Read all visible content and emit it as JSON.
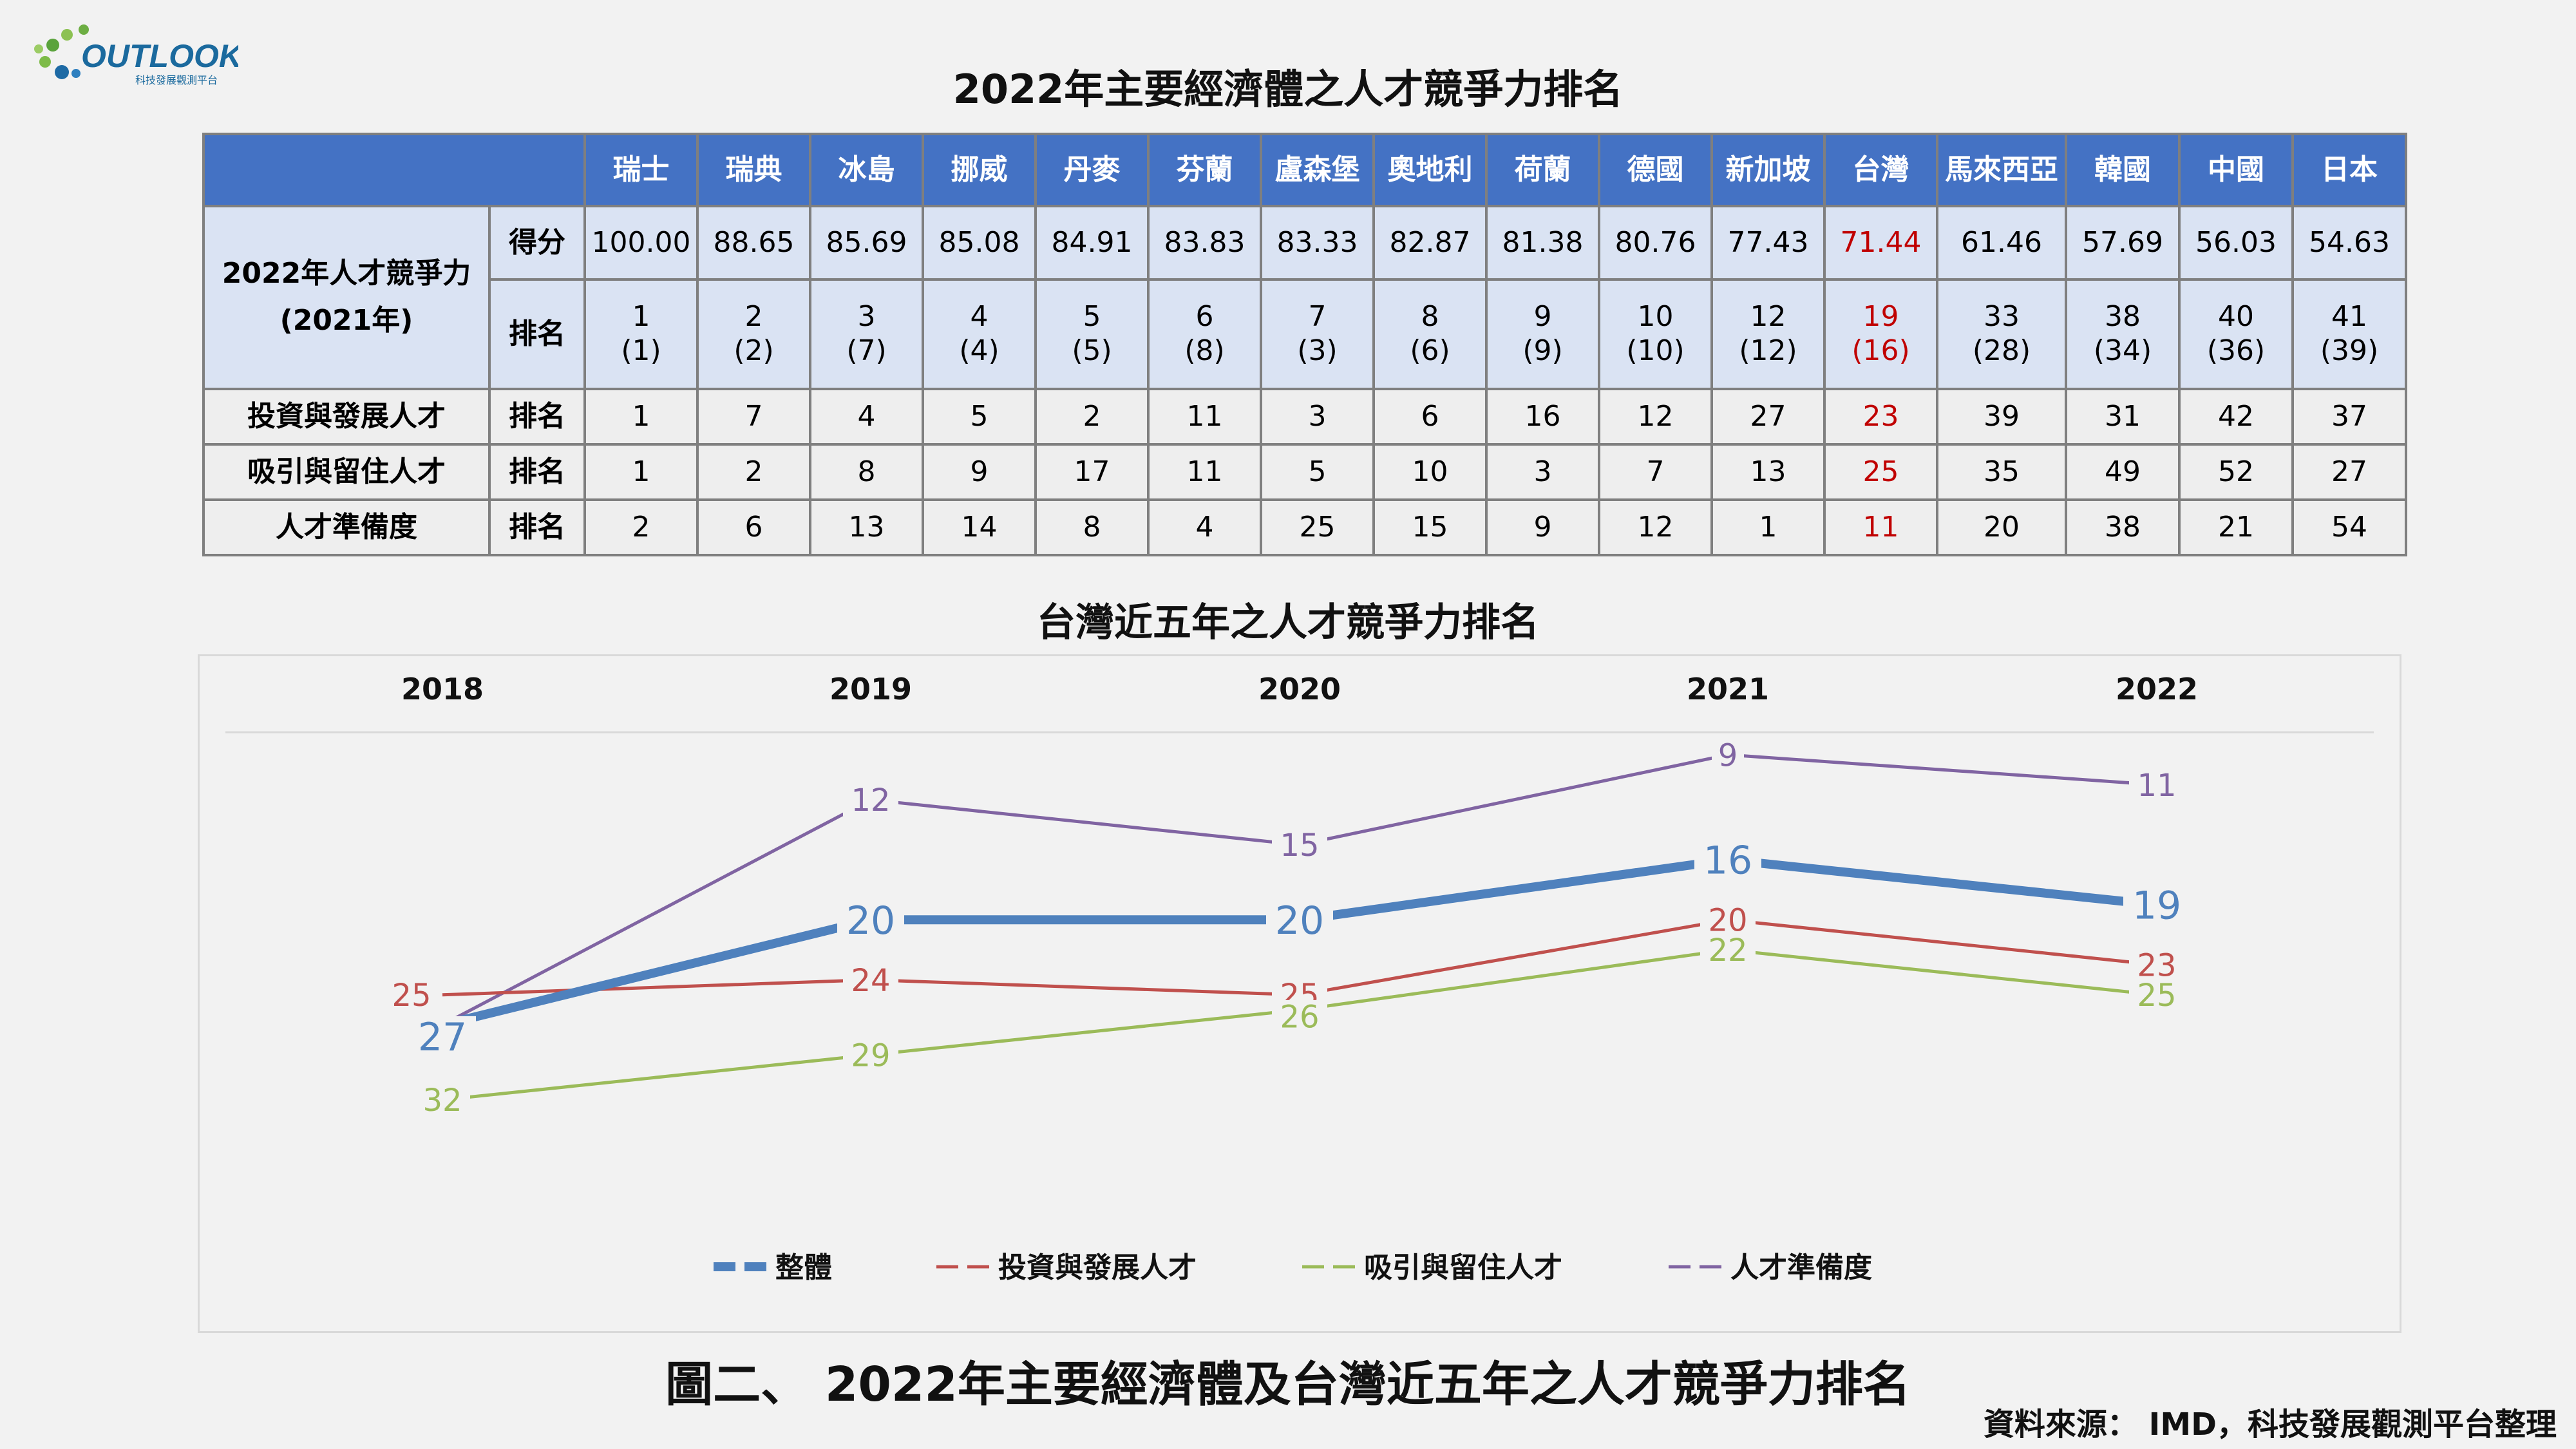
{
  "logo": {
    "text": "OUTLOOK",
    "subtext": "科技發展觀測平台"
  },
  "table_title": "2022年主要經濟體之人才競爭力排名",
  "table": {
    "countries": [
      "瑞士",
      "瑞典",
      "冰島",
      "挪威",
      "丹麥",
      "芬蘭",
      "盧森堡",
      "奧地利",
      "荷蘭",
      "德國",
      "新加坡",
      "台灣",
      "馬來西亞",
      "韓國",
      "中國",
      "日本"
    ],
    "group_label_line1": "2022年人才競爭力",
    "group_label_line2": "(2021年)",
    "score_label": "得分",
    "rank_label": "排名",
    "scores": [
      "100.00",
      "88.65",
      "85.69",
      "85.08",
      "84.91",
      "83.83",
      "83.33",
      "82.87",
      "81.38",
      "80.76",
      "77.43",
      "71.44",
      "61.46",
      "57.69",
      "56.03",
      "54.63"
    ],
    "overall_rank_2022": [
      "1",
      "2",
      "3",
      "4",
      "5",
      "6",
      "7",
      "8",
      "9",
      "10",
      "12",
      "19",
      "33",
      "38",
      "40",
      "41"
    ],
    "overall_rank_2021": [
      "(1)",
      "(2)",
      "(7)",
      "(4)",
      "(5)",
      "(8)",
      "(3)",
      "(6)",
      "(9)",
      "(10)",
      "(12)",
      "(16)",
      "(28)",
      "(34)",
      "(36)",
      "(39)"
    ],
    "sub_rows": [
      {
        "label": "投資與發展人才",
        "kind": "排名",
        "values": [
          "1",
          "7",
          "4",
          "5",
          "2",
          "11",
          "3",
          "6",
          "16",
          "12",
          "27",
          "23",
          "39",
          "31",
          "42",
          "37"
        ]
      },
      {
        "label": "吸引與留住人才",
        "kind": "排名",
        "values": [
          "1",
          "2",
          "8",
          "9",
          "17",
          "11",
          "5",
          "10",
          "3",
          "7",
          "13",
          "25",
          "35",
          "49",
          "52",
          "27"
        ]
      },
      {
        "label": "人才準備度",
        "kind": "排名",
        "values": [
          "2",
          "6",
          "13",
          "14",
          "8",
          "4",
          "25",
          "15",
          "9",
          "12",
          "1",
          "11",
          "20",
          "38",
          "21",
          "54"
        ]
      }
    ],
    "highlight_country": "台灣",
    "highlight_color": "#c00000",
    "header_color": "#4472c4"
  },
  "chart_title": "台灣近五年之人才競爭力排名",
  "chart_data": {
    "type": "line",
    "x": [
      "2018",
      "2019",
      "2020",
      "2021",
      "2022"
    ],
    "y_axis": "rank, inverted (lower rank plotted higher), labels hidden",
    "series": [
      {
        "name": "整體",
        "values": [
          27,
          20,
          20,
          16,
          19
        ],
        "color": "#4f81bd",
        "emphasis": true
      },
      {
        "name": "投資與發展人才",
        "values": [
          25,
          24,
          25,
          20,
          23
        ],
        "color": "#c0504d"
      },
      {
        "name": "吸引與留住人才",
        "values": [
          32,
          29,
          26,
          22,
          25
        ],
        "color": "#9bbb59"
      },
      {
        "name": "人才準備度",
        "values": [
          27,
          12,
          15,
          9,
          11
        ],
        "color": "#8064a2"
      }
    ],
    "legend_position": "bottom",
    "grid": false,
    "x_axis_position": "top"
  },
  "caption": "圖二、 2022年主要經濟體及台灣近五年之人才競爭力排名",
  "source": "資料來源： IMD，科技發展觀測平台整理"
}
